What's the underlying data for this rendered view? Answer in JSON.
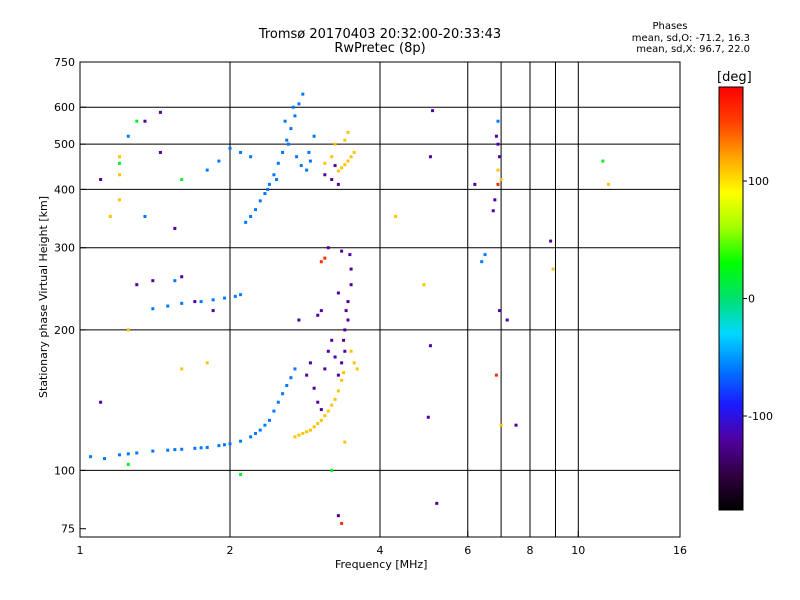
{
  "chart_data": {
    "type": "scatter",
    "title": "Tromsø 20170403 20:32:00-20:33:43",
    "subtitle": "RwPretec (8p)",
    "xlabel": "Frequency [MHz]",
    "ylabel": "Stationary phase Virtual Height [km]",
    "xscale": "log",
    "yscale": "log",
    "xlim": [
      1,
      16
    ],
    "ylim": [
      72,
      750
    ],
    "xticks": [
      1,
      2,
      4,
      6,
      8,
      10,
      16
    ],
    "yticks": [
      75,
      100,
      200,
      300,
      400,
      500,
      600,
      750
    ],
    "xgrid": [
      2,
      4,
      6,
      7,
      8,
      9,
      10
    ],
    "ygrid": [
      100,
      200,
      300,
      400,
      500,
      600
    ],
    "phases_text": {
      "header": "Phases",
      "line_o": "mean, sd,O: -71.2, 16.3",
      "line_x": "mean, sd,X:  96.7, 22.0"
    },
    "colorbar": {
      "label": "[deg]",
      "range": [
        -180,
        180
      ],
      "ticks": [
        100,
        0,
        -100
      ],
      "colors": [
        "#000000",
        "#300040",
        "#5000a0",
        "#1a1aff",
        "#0078ff",
        "#00d8ff",
        "#00e070",
        "#00ff00",
        "#a0ff00",
        "#ffff00",
        "#ffa500",
        "#ff4000",
        "#ff0000"
      ]
    },
    "series": [
      {
        "phase": -60,
        "points": [
          [
            1.2,
            108
          ],
          [
            1.3,
            109
          ],
          [
            1.4,
            110
          ],
          [
            1.5,
            110.5
          ],
          [
            1.6,
            111
          ],
          [
            1.7,
            111.5
          ],
          [
            1.8,
            112
          ],
          [
            1.9,
            113
          ],
          [
            2.0,
            114
          ],
          [
            2.1,
            115.5
          ],
          [
            2.2,
            118
          ],
          [
            2.3,
            122
          ],
          [
            2.4,
            128
          ],
          [
            2.45,
            134
          ],
          [
            2.5,
            140
          ],
          [
            2.55,
            146
          ],
          [
            2.6,
            152
          ],
          [
            2.65,
            158
          ],
          [
            2.7,
            165
          ],
          [
            1.25,
            108.5
          ],
          [
            1.55,
            110.8
          ],
          [
            1.75,
            111.8
          ],
          [
            1.95,
            113.5
          ],
          [
            2.25,
            120
          ],
          [
            2.35,
            125
          ],
          [
            2.15,
            340
          ],
          [
            2.2,
            350
          ],
          [
            2.25,
            362
          ],
          [
            2.3,
            378
          ],
          [
            2.35,
            392
          ],
          [
            2.4,
            410
          ],
          [
            2.45,
            430
          ],
          [
            2.5,
            455
          ],
          [
            2.55,
            480
          ],
          [
            2.6,
            510
          ],
          [
            2.65,
            540
          ],
          [
            2.7,
            575
          ],
          [
            2.75,
            610
          ],
          [
            2.8,
            640
          ],
          [
            2.62,
            500
          ],
          [
            2.72,
            470
          ],
          [
            2.78,
            450
          ],
          [
            2.85,
            440
          ],
          [
            2.9,
            460
          ],
          [
            2.88,
            480
          ],
          [
            2.95,
            520
          ],
          [
            2.68,
            600
          ],
          [
            2.58,
            560
          ],
          [
            2.48,
            420
          ],
          [
            2.38,
            400
          ],
          [
            1.75,
            230
          ],
          [
            1.85,
            232
          ],
          [
            1.95,
            234
          ],
          [
            2.05,
            236
          ],
          [
            2.1,
            238
          ],
          [
            1.6,
            228
          ],
          [
            1.5,
            225
          ],
          [
            1.55,
            255
          ],
          [
            1.4,
            222
          ],
          [
            2.1,
            480
          ],
          [
            1.9,
            460
          ],
          [
            1.8,
            440
          ],
          [
            2.0,
            490
          ],
          [
            6.4,
            280
          ],
          [
            6.5,
            290
          ],
          [
            6.9,
            560
          ],
          [
            1.05,
            107
          ],
          [
            1.12,
            106
          ],
          [
            1.35,
            350
          ],
          [
            1.25,
            520
          ],
          [
            2.2,
            470
          ]
        ]
      },
      {
        "phase": -120,
        "points": [
          [
            3.3,
            160
          ],
          [
            3.35,
            170
          ],
          [
            3.4,
            180
          ],
          [
            3.4,
            200
          ],
          [
            3.45,
            210
          ],
          [
            3.45,
            230
          ],
          [
            3.5,
            250
          ],
          [
            3.5,
            270
          ],
          [
            3.48,
            290
          ],
          [
            3.42,
            220
          ],
          [
            3.38,
            190
          ],
          [
            3.3,
            240
          ],
          [
            2.9,
            170
          ],
          [
            2.85,
            160
          ],
          [
            2.95,
            150
          ],
          [
            3.0,
            140
          ],
          [
            3.05,
            135
          ],
          [
            3.1,
            165
          ],
          [
            3.15,
            180
          ],
          [
            3.2,
            190
          ],
          [
            3.25,
            175
          ],
          [
            3.0,
            215
          ],
          [
            3.05,
            220
          ],
          [
            1.45,
            585
          ],
          [
            1.35,
            560
          ],
          [
            1.45,
            480
          ],
          [
            3.3,
            410
          ],
          [
            3.2,
            420
          ],
          [
            3.25,
            450
          ],
          [
            3.1,
            430
          ],
          [
            5.1,
            590
          ],
          [
            5.05,
            470
          ],
          [
            6.2,
            410
          ],
          [
            6.85,
            520
          ],
          [
            6.9,
            500
          ],
          [
            6.95,
            470
          ],
          [
            6.8,
            380
          ],
          [
            6.75,
            360
          ],
          [
            6.95,
            220
          ],
          [
            7.2,
            210
          ],
          [
            7.5,
            125
          ],
          [
            5.2,
            85
          ],
          [
            5.05,
            185
          ],
          [
            5.0,
            130
          ],
          [
            3.3,
            80
          ],
          [
            1.3,
            250
          ],
          [
            1.4,
            255
          ],
          [
            1.6,
            260
          ],
          [
            1.7,
            230
          ],
          [
            8.8,
            310
          ],
          [
            1.55,
            330
          ],
          [
            1.85,
            220
          ],
          [
            2.75,
            210
          ],
          [
            3.15,
            300
          ],
          [
            3.35,
            295
          ],
          [
            1.1,
            140
          ],
          [
            1.1,
            420
          ]
        ]
      },
      {
        "phase": 110,
        "points": [
          [
            2.7,
            118
          ],
          [
            2.75,
            119
          ],
          [
            2.8,
            120
          ],
          [
            2.85,
            121
          ],
          [
            2.9,
            122
          ],
          [
            2.95,
            124
          ],
          [
            3.0,
            126
          ],
          [
            3.05,
            128
          ],
          [
            3.1,
            131
          ],
          [
            3.15,
            134
          ],
          [
            3.2,
            138
          ],
          [
            3.25,
            142
          ],
          [
            3.3,
            148
          ],
          [
            3.35,
            156
          ],
          [
            3.38,
            162
          ],
          [
            3.3,
            438
          ],
          [
            3.35,
            445
          ],
          [
            3.4,
            452
          ],
          [
            3.45,
            460
          ],
          [
            3.5,
            470
          ],
          [
            3.55,
            480
          ],
          [
            3.25,
            500
          ],
          [
            3.4,
            510
          ],
          [
            3.45,
            530
          ],
          [
            3.2,
            470
          ],
          [
            3.1,
            455
          ],
          [
            1.2,
            470
          ],
          [
            1.2,
            430
          ],
          [
            1.15,
            350
          ],
          [
            1.2,
            380
          ],
          [
            1.25,
            200
          ],
          [
            1.6,
            165
          ],
          [
            1.8,
            170
          ],
          [
            4.3,
            350
          ],
          [
            4.9,
            250
          ],
          [
            6.9,
            440
          ],
          [
            7.0,
            420
          ],
          [
            8.9,
            270
          ],
          [
            11.5,
            410
          ],
          [
            7.0,
            125
          ],
          [
            3.4,
            115
          ],
          [
            3.5,
            180
          ],
          [
            3.55,
            170
          ],
          [
            3.6,
            165
          ]
        ]
      },
      {
        "phase": 20,
        "points": [
          [
            1.2,
            455
          ],
          [
            1.3,
            560
          ],
          [
            1.6,
            420
          ],
          [
            11.2,
            460
          ],
          [
            3.2,
            100
          ],
          [
            1.25,
            103
          ],
          [
            2.1,
            98
          ]
        ]
      },
      {
        "phase": 160,
        "points": [
          [
            3.05,
            280
          ],
          [
            3.1,
            285
          ],
          [
            6.85,
            160
          ],
          [
            3.35,
            77
          ],
          [
            6.9,
            410
          ]
        ]
      }
    ]
  }
}
